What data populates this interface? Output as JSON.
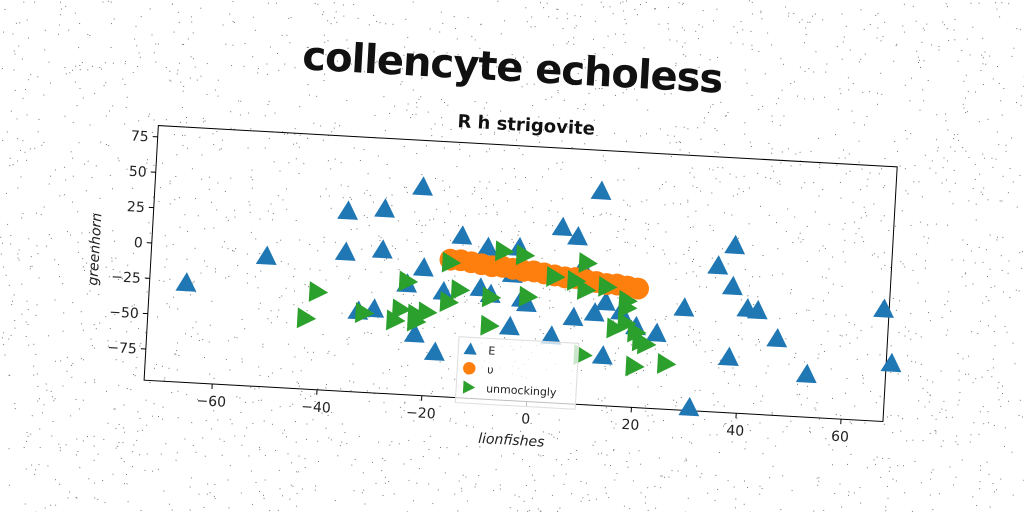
{
  "title": "collencyte echoless",
  "chart_data": {
    "type": "scatter",
    "subtitle": "R h strigovite",
    "xlabel": "lionfishes",
    "ylabel": "greenhorn",
    "xlim": [
      -73,
      68
    ],
    "ylim": [
      -97,
      83
    ],
    "xticks": [
      -60,
      -40,
      -20,
      0,
      20,
      40,
      60
    ],
    "yticks": [
      -75,
      -50,
      -25,
      0,
      25,
      50,
      75
    ],
    "grid": false,
    "legend_position": "lower-center",
    "series": [
      {
        "name": "E",
        "marker": "triangle-up",
        "color": "#1f77b4",
        "points": [
          [
            -66,
            -27
          ],
          [
            -51,
            -5
          ],
          [
            -36,
            30
          ],
          [
            -36,
            1
          ],
          [
            -29,
            33
          ],
          [
            -29,
            4
          ],
          [
            -22,
            50
          ],
          [
            -21,
            -7
          ],
          [
            -24,
            -19
          ],
          [
            -33,
            -40
          ],
          [
            -30,
            -38
          ],
          [
            -22,
            -54
          ],
          [
            -18,
            -66
          ],
          [
            -17,
            -23
          ],
          [
            -10,
            -19
          ],
          [
            -8,
            -23
          ],
          [
            -14,
            17
          ],
          [
            -9,
            10
          ],
          [
            -4,
            -8
          ],
          [
            -3,
            11
          ],
          [
            -2,
            -25
          ],
          [
            -4,
            -45
          ],
          [
            -1,
            -28
          ],
          [
            4,
            -50
          ],
          [
            5,
            27
          ],
          [
            8,
            21
          ],
          [
            9,
            -2
          ],
          [
            12,
            54
          ],
          [
            10,
            -5
          ],
          [
            8,
            -36
          ],
          [
            12,
            -32
          ],
          [
            14,
            -24
          ],
          [
            14,
            -62
          ],
          [
            17,
            -30
          ],
          [
            20,
            -40
          ],
          [
            24,
            -44
          ],
          [
            29,
            -25
          ],
          [
            35,
            6
          ],
          [
            38,
            -58
          ],
          [
            38,
            21
          ],
          [
            38,
            -8
          ],
          [
            41,
            -23
          ],
          [
            43,
            -24
          ],
          [
            47,
            -43
          ],
          [
            53,
            -67
          ],
          [
            67,
            -18
          ],
          [
            69,
            -56
          ],
          [
            31,
            -95
          ]
        ]
      },
      {
        "name": "υ",
        "marker": "circle",
        "color": "#ff7f0e",
        "points": [
          [
            -16,
            0
          ],
          [
            -14,
            0
          ],
          [
            -12,
            -1
          ],
          [
            -10,
            -2
          ],
          [
            -8,
            -3
          ],
          [
            -6,
            -3
          ],
          [
            -4,
            -4
          ],
          [
            -2,
            -5
          ],
          [
            0,
            -5
          ],
          [
            2,
            -6
          ],
          [
            4,
            -7
          ],
          [
            6,
            -8
          ],
          [
            8,
            -8
          ],
          [
            10,
            -9
          ],
          [
            12,
            -10
          ],
          [
            14,
            -11
          ],
          [
            16,
            -11
          ],
          [
            18,
            -12
          ],
          [
            20,
            -13
          ]
        ]
      },
      {
        "name": "unmockingly",
        "marker": "triangle-right",
        "color": "#2ca02c",
        "points": [
          [
            -16,
            -2
          ],
          [
            -24,
            -17
          ],
          [
            -41,
            -28
          ],
          [
            -43,
            -47
          ],
          [
            -32,
            -41
          ],
          [
            -25,
            -37
          ],
          [
            -26,
            -45
          ],
          [
            -22,
            -45
          ],
          [
            -22,
            -40
          ],
          [
            -20,
            -38
          ],
          [
            -8,
            -45
          ],
          [
            -8,
            -25
          ],
          [
            -14,
            -21
          ],
          [
            -16,
            -30
          ],
          [
            -6,
            8
          ],
          [
            -2,
            6
          ],
          [
            -1,
            -23
          ],
          [
            4,
            -8
          ],
          [
            8,
            -10
          ],
          [
            10,
            -16
          ],
          [
            10,
            3
          ],
          [
            14,
            -13
          ],
          [
            18,
            -22
          ],
          [
            18,
            -27
          ],
          [
            16,
            -42
          ],
          [
            18,
            -38
          ],
          [
            20,
            -44
          ],
          [
            21,
            -50
          ],
          [
            22,
            -52
          ],
          [
            10,
            -62
          ],
          [
            20,
            -68
          ],
          [
            26,
            -65
          ]
        ]
      }
    ]
  }
}
